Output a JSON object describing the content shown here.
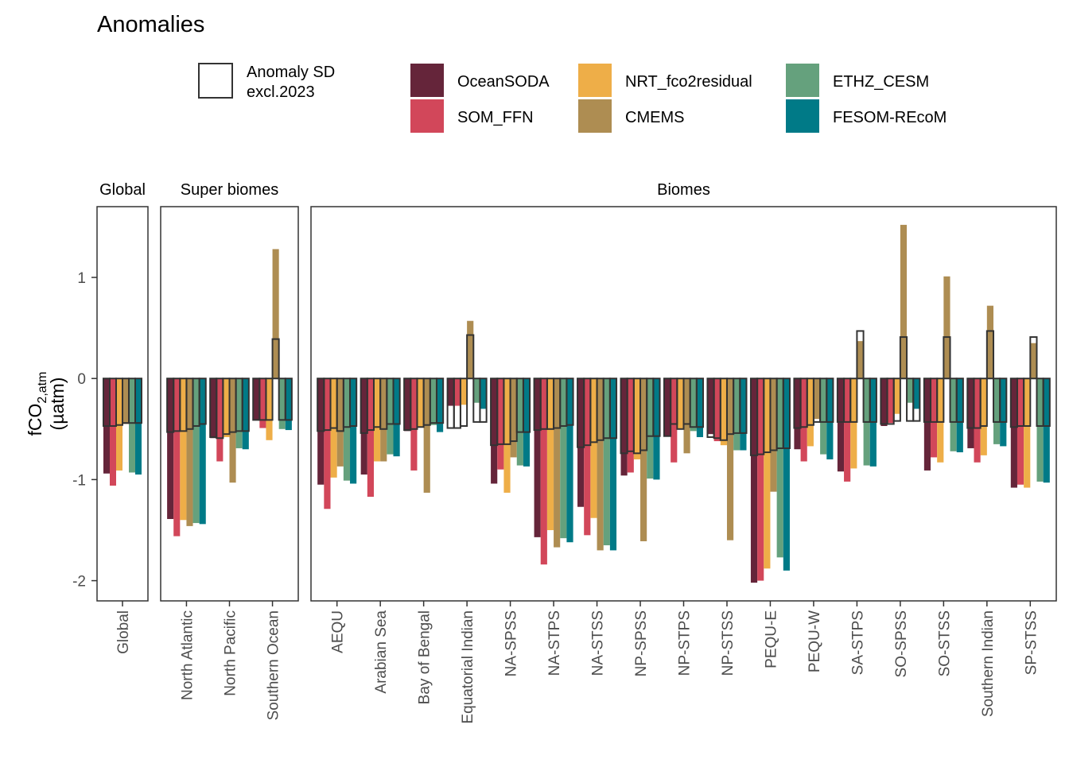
{
  "chart_data": {
    "type": "bar",
    "title": "Anomalies",
    "y_label": {
      "main": "fCO",
      "sub": "2,atm",
      "unit": "(µatm)"
    },
    "sd_label": [
      "Anomaly SD",
      "excl.2023"
    ],
    "ylim": [
      -2.2,
      1.7
    ],
    "yticks": [
      -2,
      -1,
      0,
      1
    ],
    "series": [
      {
        "name": "OceanSODA",
        "color": "#65253a"
      },
      {
        "name": "SOM_FFN",
        "color": "#d2475a"
      },
      {
        "name": "NRT_fco2residual",
        "color": "#eeae48"
      },
      {
        "name": "CMEMS",
        "color": "#ae8d52"
      },
      {
        "name": "ETHZ_CESM",
        "color": "#65a17d"
      },
      {
        "name": "FESOM-REcoM",
        "color": "#007a87"
      }
    ],
    "panels": [
      {
        "title": "Global",
        "categories": [
          "Global"
        ],
        "series": [
          {
            "values": [
              -0.94
            ]
          },
          {
            "values": [
              -1.06
            ]
          },
          {
            "values": [
              -0.91
            ]
          },
          {
            "values": [
              -0.45
            ]
          },
          {
            "values": [
              -0.93
            ]
          },
          {
            "values": [
              -0.95
            ]
          }
        ],
        "sd": [
          {
            "values": [
              -0.47
            ]
          },
          {
            "values": [
              -0.47
            ]
          },
          {
            "values": [
              -0.46
            ]
          },
          {
            "values": [
              -0.44
            ]
          },
          {
            "values": [
              -0.44
            ]
          },
          {
            "values": [
              -0.44
            ]
          }
        ]
      },
      {
        "title": "Super biomes",
        "categories": [
          "North Atlantic",
          "North Pacific",
          "Southern Ocean"
        ],
        "series": [
          {
            "values": [
              -1.39,
              -0.59,
              -0.41
            ]
          },
          {
            "values": [
              -1.56,
              -0.82,
              -0.49
            ]
          },
          {
            "values": [
              -1.4,
              -0.58,
              -0.61
            ]
          },
          {
            "values": [
              -1.46,
              -1.03,
              1.28
            ]
          },
          {
            "values": [
              -1.43,
              -0.69,
              -0.5
            ]
          },
          {
            "values": [
              -1.44,
              -0.7,
              -0.51
            ]
          }
        ],
        "sd": [
          {
            "values": [
              -0.53,
              -0.58,
              -0.41
            ]
          },
          {
            "values": [
              -0.52,
              -0.59,
              -0.41
            ]
          },
          {
            "values": [
              -0.52,
              -0.55,
              -0.41
            ]
          },
          {
            "values": [
              -0.5,
              -0.53,
              0.39
            ]
          },
          {
            "values": [
              -0.47,
              -0.52,
              -0.41
            ]
          },
          {
            "values": [
              -0.45,
              -0.52,
              -0.41
            ]
          }
        ]
      },
      {
        "title": "Biomes",
        "categories": [
          "AEQU",
          "Arabian Sea",
          "Bay of Bengal",
          "Equatorial Indian",
          "NA-SPSS",
          "NA-STPS",
          "NA-STSS",
          "NP-SPSS",
          "NP-STPS",
          "NP-STSS",
          "PEQU-E",
          "PEQU-W",
          "SA-STPS",
          "SO-SPSS",
          "SO-STSS",
          "Southern Indian",
          "SP-STSS"
        ],
        "series": [
          {
            "values": [
              -1.05,
              -0.95,
              -0.52,
              -0.27,
              -1.04,
              -1.57,
              -1.27,
              -0.96,
              -0.57,
              -0.55,
              -2.02,
              -0.7,
              -0.92,
              -0.47,
              -0.91,
              -0.69,
              -1.08
            ]
          },
          {
            "values": [
              -1.29,
              -1.17,
              -0.91,
              -0.27,
              -0.9,
              -1.84,
              -1.55,
              -0.93,
              -0.83,
              -0.62,
              -2.0,
              -0.82,
              -1.02,
              -0.44,
              -0.78,
              -0.83,
              -1.05
            ]
          },
          {
            "values": [
              -0.98,
              -0.82,
              -0.48,
              -0.26,
              -1.13,
              -1.5,
              -1.38,
              -0.8,
              -0.5,
              -0.66,
              -1.88,
              -0.67,
              -0.89,
              -0.35,
              -0.83,
              -0.76,
              -1.08
            ]
          },
          {
            "values": [
              -0.87,
              -0.82,
              -1.13,
              0.57,
              -0.78,
              -1.67,
              -1.7,
              -1.61,
              -0.74,
              -1.6,
              -1.12,
              -0.4,
              0.37,
              1.52,
              1.01,
              0.72,
              0.35
            ]
          },
          {
            "values": [
              -1.01,
              -0.75,
              -0.46,
              -0.24,
              -0.86,
              -1.58,
              -1.65,
              -0.99,
              -0.52,
              -0.71,
              -1.77,
              -0.75,
              -0.86,
              -0.24,
              -0.72,
              -0.65,
              -1.02
            ]
          },
          {
            "values": [
              -1.04,
              -0.77,
              -0.53,
              -0.3,
              -0.87,
              -1.62,
              -1.7,
              -1.0,
              -0.58,
              -0.71,
              -1.9,
              -0.8,
              -0.87,
              -0.3,
              -0.73,
              -0.67,
              -1.03
            ]
          }
        ],
        "sd": [
          {
            "values": [
              -0.52,
              -0.54,
              -0.51,
              -0.49,
              -0.66,
              -0.51,
              -0.68,
              -0.74,
              -0.57,
              -0.58,
              -0.76,
              -0.49,
              -0.43,
              -0.45,
              -0.43,
              -0.49,
              -0.48
            ]
          },
          {
            "values": [
              -0.51,
              -0.51,
              -0.5,
              -0.49,
              -0.65,
              -0.5,
              -0.66,
              -0.72,
              -0.45,
              -0.59,
              -0.75,
              -0.48,
              -0.43,
              -0.45,
              -0.43,
              -0.49,
              -0.47
            ]
          },
          {
            "values": [
              -0.49,
              -0.48,
              -0.48,
              -0.47,
              -0.65,
              -0.5,
              -0.63,
              -0.74,
              -0.5,
              -0.61,
              -0.73,
              -0.46,
              -0.43,
              -0.42,
              -0.43,
              -0.47,
              -0.47
            ]
          },
          {
            "values": [
              -0.52,
              -0.5,
              -0.46,
              0.43,
              -0.62,
              -0.49,
              -0.61,
              -0.71,
              -0.45,
              -0.55,
              -0.71,
              -0.43,
              0.47,
              0.41,
              0.41,
              0.47,
              0.41
            ]
          },
          {
            "values": [
              -0.48,
              -0.45,
              -0.44,
              -0.43,
              -0.53,
              -0.47,
              -0.59,
              -0.57,
              -0.48,
              -0.54,
              -0.69,
              -0.43,
              -0.43,
              -0.42,
              -0.43,
              -0.43,
              -0.47
            ]
          },
          {
            "values": [
              -0.47,
              -0.45,
              -0.44,
              -0.43,
              -0.53,
              -0.46,
              -0.59,
              -0.57,
              -0.48,
              -0.54,
              -0.69,
              -0.43,
              -0.43,
              -0.42,
              -0.43,
              -0.43,
              -0.47
            ]
          }
        ]
      }
    ]
  }
}
